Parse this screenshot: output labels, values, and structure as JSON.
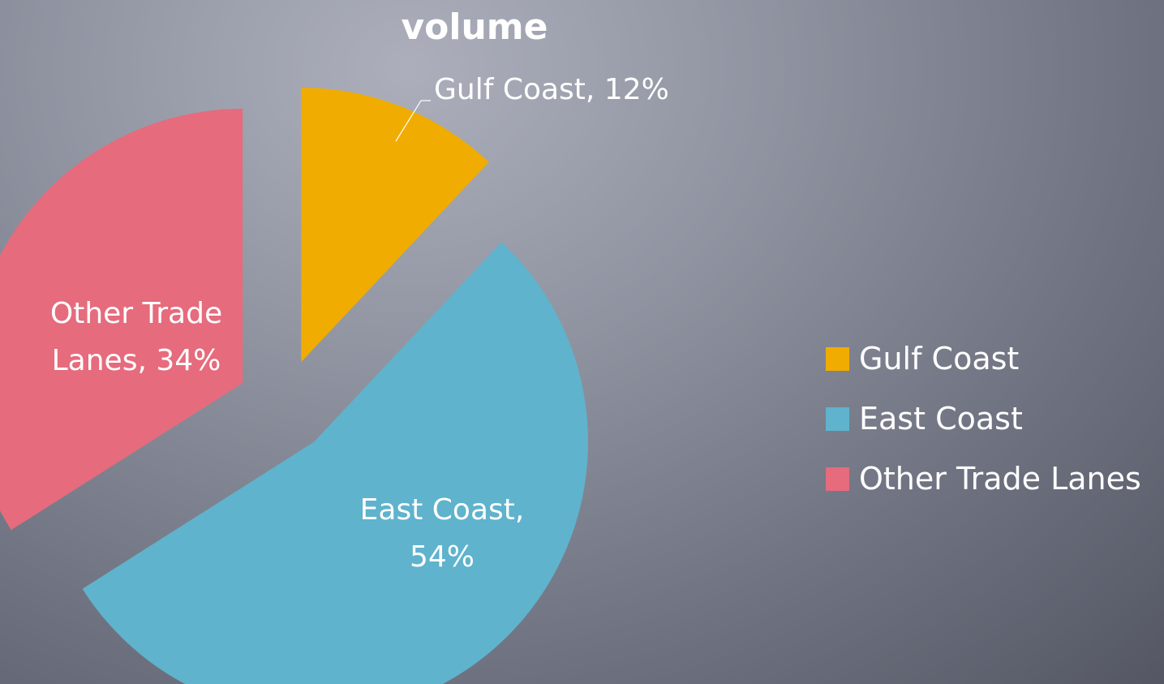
{
  "chart_data": {
    "type": "pie",
    "title": "volume",
    "categories": [
      "Gulf Coast",
      "East Coast",
      "Other Trade Lanes"
    ],
    "values": [
      12,
      54,
      34
    ],
    "unit": "%",
    "exploded": true,
    "data_labels": [
      "Gulf Coast, 12%",
      "East Coast, 54%",
      "Other Trade Lanes, 34%"
    ],
    "legend_position": "right",
    "colors": [
      "#f0ac00",
      "#5fb3cc",
      "#e66b7d"
    ]
  }
}
